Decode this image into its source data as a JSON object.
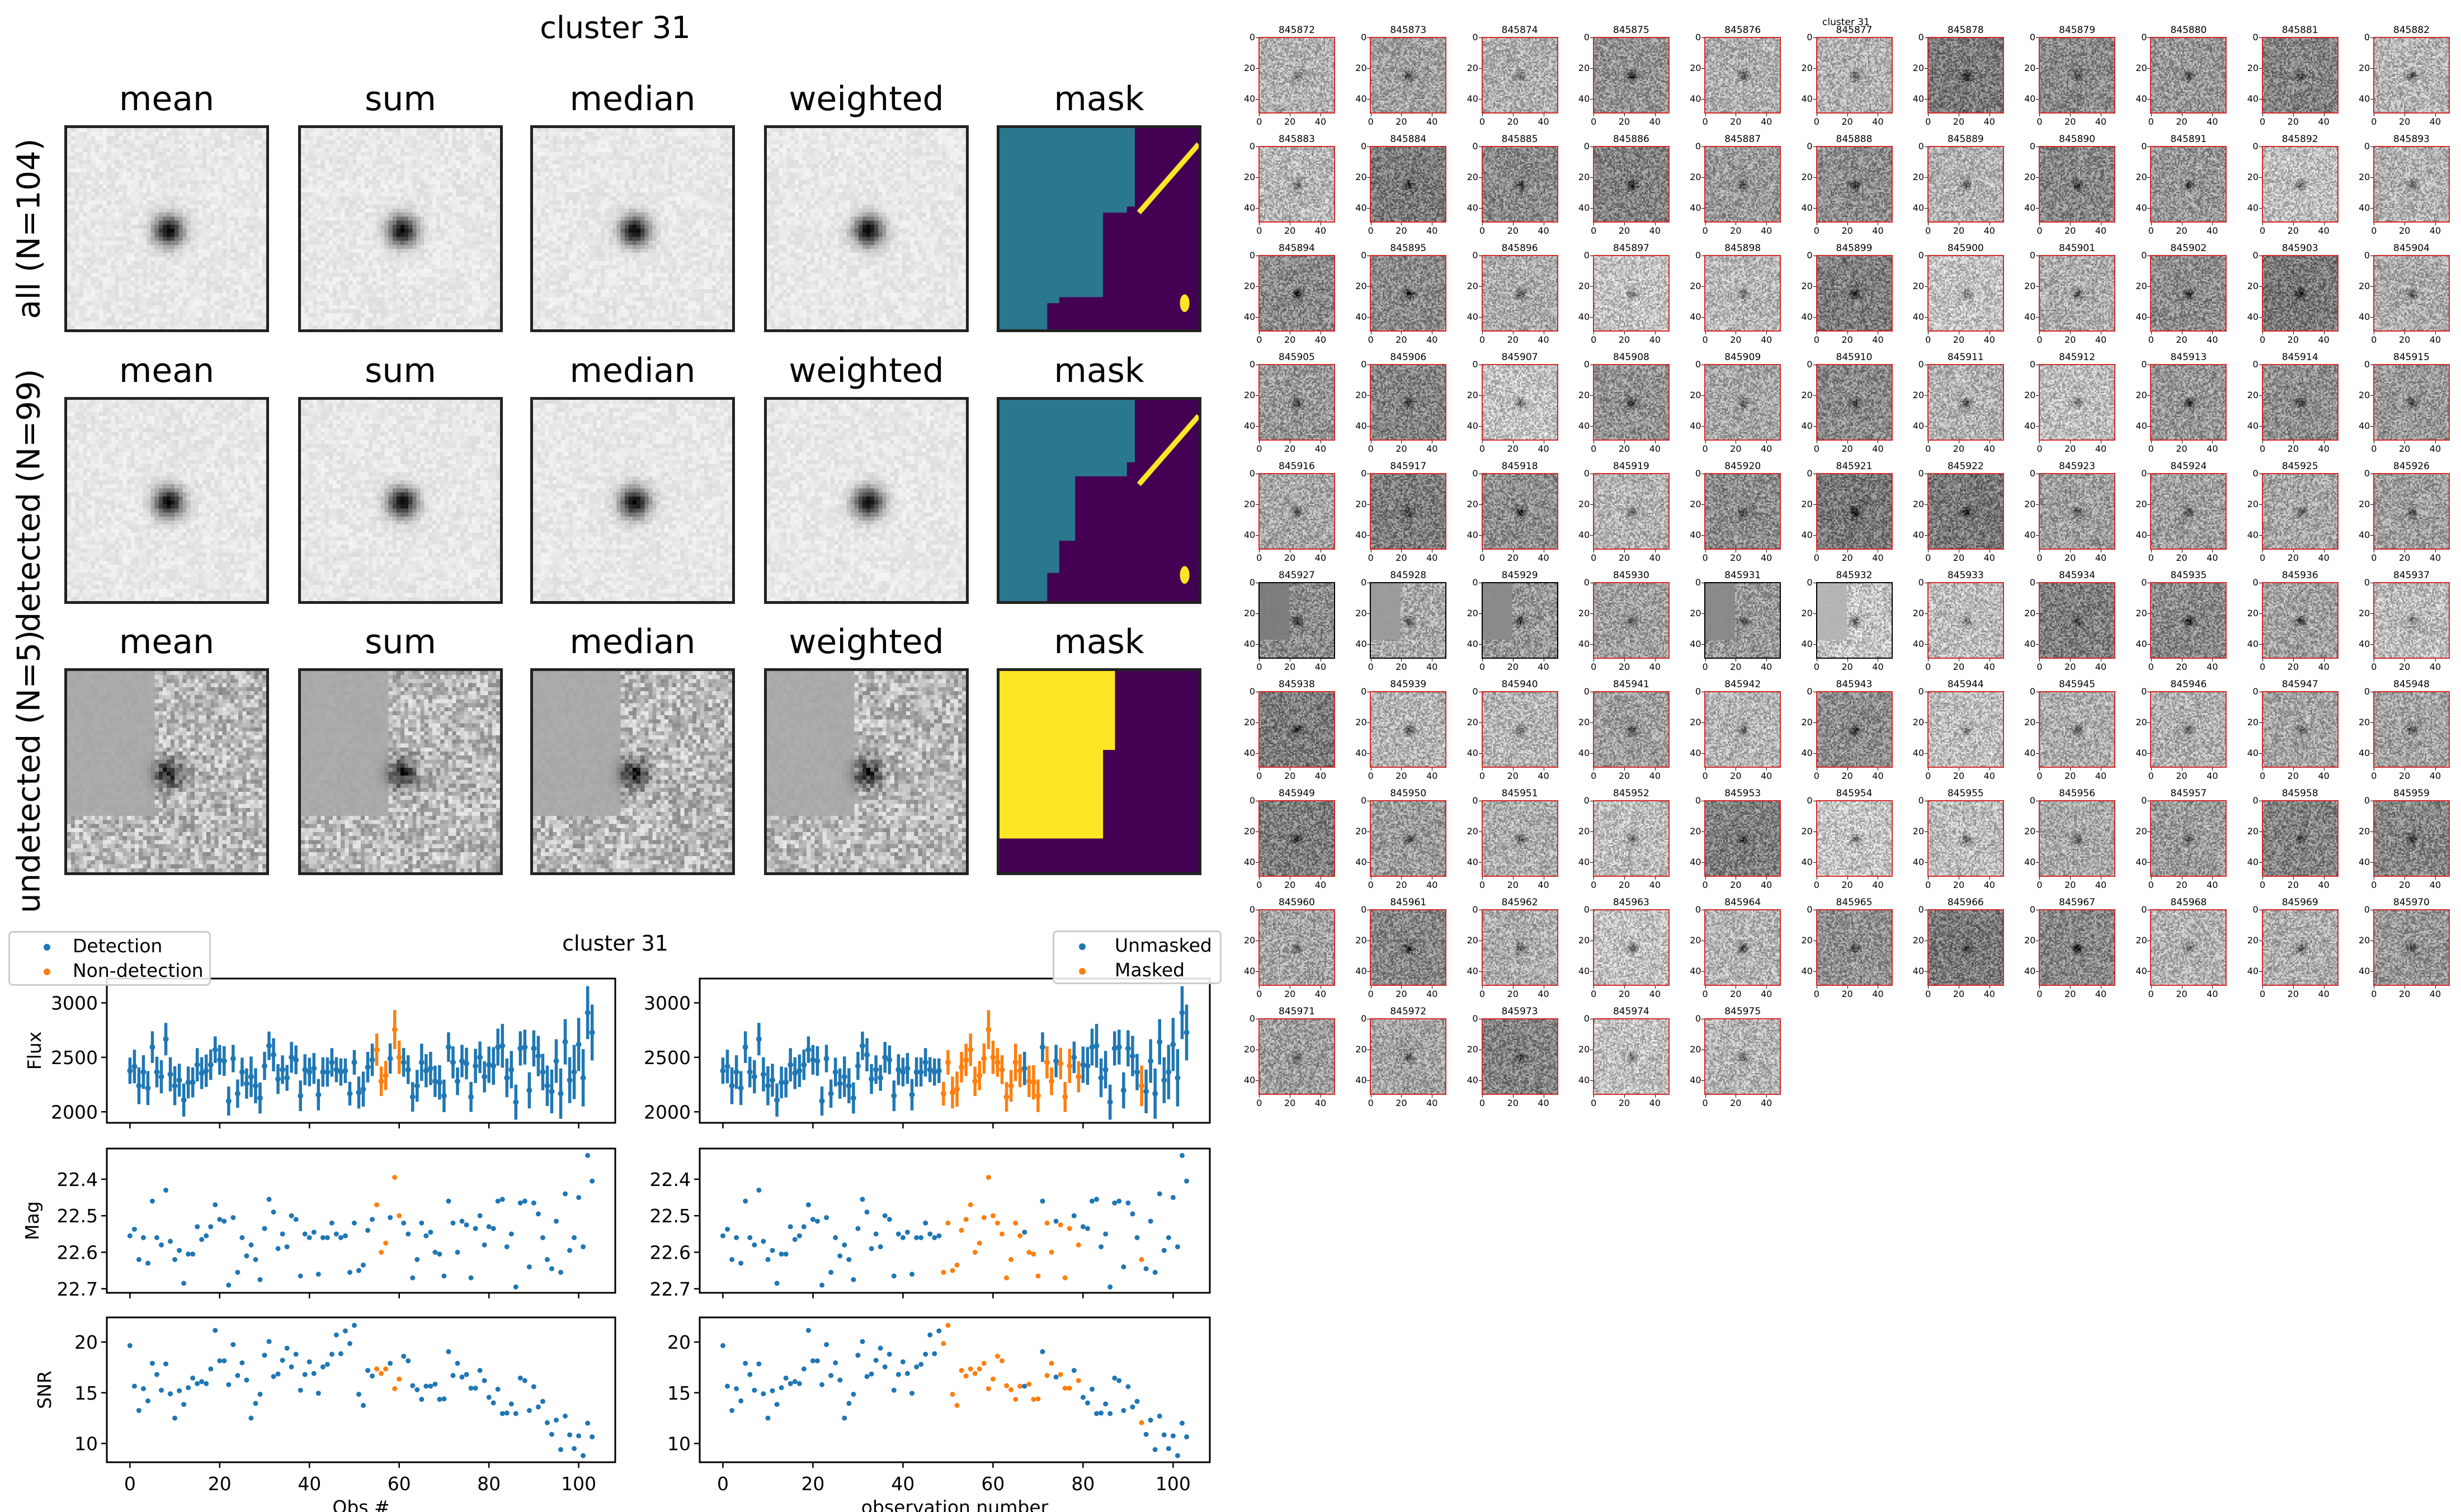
{
  "figure_title": "cluster 31",
  "stacks": {
    "columns": [
      "mean",
      "sum",
      "median",
      "weighted",
      "mask"
    ],
    "rows": [
      {
        "label": "all (N=104)"
      },
      {
        "label": "detected (N=99)"
      },
      {
        "label": "undetected (N=5)"
      }
    ],
    "mask_colors": {
      "low": "#440154",
      "mid": "#2a788e",
      "high": "#fde725"
    }
  },
  "thumbnails": {
    "supertitle": "cluster 31",
    "tick_labels": [
      "0",
      "20",
      "40"
    ],
    "border_colors": {
      "detected": "#d62728",
      "undetected": "#000000"
    },
    "ids": [
      "845872",
      "845873",
      "845874",
      "845875",
      "845876",
      "845877",
      "845878",
      "845879",
      "845880",
      "845881",
      "845882",
      "845883",
      "845884",
      "845885",
      "845886",
      "845887",
      "845888",
      "845889",
      "845890",
      "845891",
      "845892",
      "845893",
      "845894",
      "845895",
      "845896",
      "845897",
      "845898",
      "845899",
      "845900",
      "845901",
      "845902",
      "845903",
      "845904",
      "845905",
      "845906",
      "845907",
      "845908",
      "845909",
      "845910",
      "845911",
      "845912",
      "845913",
      "845914",
      "845915",
      "845916",
      "845917",
      "845918",
      "845919",
      "845920",
      "845921",
      "845922",
      "845923",
      "845924",
      "845925",
      "845926",
      "845927",
      "845928",
      "845929",
      "845930",
      "845931",
      "845932",
      "845933",
      "845934",
      "845935",
      "845936",
      "845937",
      "845938",
      "845939",
      "845940",
      "845941",
      "845942",
      "845943",
      "845944",
      "845945",
      "845946",
      "845947",
      "845948",
      "845949",
      "845950",
      "845951",
      "845952",
      "845953",
      "845954",
      "845955",
      "845956",
      "845957",
      "845958",
      "845959",
      "845960",
      "845961",
      "845962",
      "845963",
      "845964",
      "845965",
      "845966",
      "845967",
      "845968",
      "845969",
      "845970",
      "845971",
      "845972",
      "845973",
      "845974",
      "845975"
    ],
    "undetected_ids": [
      "845927",
      "845928",
      "845929",
      "845931",
      "845932"
    ]
  },
  "chart_data": {
    "type": "scatter",
    "title": "cluster 31",
    "colors": {
      "blue": "#1f77b4",
      "orange": "#ff7f0e"
    },
    "xlim": [
      -5.15,
      108.15
    ],
    "xticks": [
      0,
      20,
      40,
      60,
      80,
      100
    ],
    "rows": [
      {
        "ylabel": "Flux",
        "ylim": [
          1899,
          3223
        ],
        "yticks": [
          2000,
          2500,
          3000
        ],
        "inverted": false
      },
      {
        "ylabel": "Mag",
        "ylim": [
          22.711,
          22.316
        ],
        "yticks": [
          22.4,
          22.5,
          22.6,
          22.7
        ],
        "inverted": true
      },
      {
        "ylabel": "SNR",
        "ylim": [
          8.15,
          22.43
        ],
        "yticks": [
          10,
          15,
          20
        ],
        "inverted": false
      }
    ],
    "x": [
      0,
      1,
      2,
      3,
      4,
      5,
      6,
      7,
      8,
      9,
      10,
      11,
      12,
      13,
      14,
      15,
      16,
      17,
      18,
      19,
      20,
      21,
      22,
      23,
      24,
      25,
      26,
      27,
      28,
      29,
      30,
      31,
      32,
      33,
      34,
      35,
      36,
      37,
      38,
      39,
      40,
      41,
      42,
      43,
      44,
      45,
      46,
      47,
      48,
      49,
      50,
      51,
      52,
      53,
      54,
      55,
      56,
      57,
      58,
      59,
      60,
      61,
      62,
      63,
      64,
      65,
      66,
      67,
      68,
      69,
      70,
      71,
      72,
      73,
      74,
      75,
      76,
      77,
      78,
      79,
      80,
      81,
      82,
      83,
      84,
      85,
      86,
      87,
      88,
      89,
      90,
      91,
      92,
      93,
      94,
      95,
      96,
      97,
      98,
      99,
      100,
      101,
      102,
      103
    ],
    "flux": [
      2377,
      2416,
      2239,
      2365,
      2218,
      2594,
      2365,
      2322,
      2667,
      2344,
      2239,
      2290,
      2108,
      2270,
      2270,
      2432,
      2355,
      2377,
      2432,
      2570,
      2477,
      2466,
      2099,
      2489,
      2167,
      2365,
      2259,
      2322,
      2239,
      2127,
      2421,
      2606,
      2523,
      2301,
      2387,
      2312,
      2500,
      2477,
      2147,
      2387,
      2365,
      2398,
      2157,
      2365,
      2365,
      2454,
      2387,
      2365,
      2377,
      2167,
      2454,
      2177,
      2208,
      2410,
      2477,
      2570,
      2280,
      2333,
      2489,
      2754,
      2500,
      2454,
      2387,
      2137,
      2239,
      2454,
      2377,
      2398,
      2280,
      2270,
      2147,
      2594,
      2454,
      2280,
      2466,
      2443,
      2137,
      2421,
      2500,
      2322,
      2432,
      2421,
      2594,
      2606,
      2312,
      2387,
      2089,
      2582,
      2594,
      2197,
      2582,
      2512,
      2365,
      2239,
      2187,
      2466,
      2167,
      2642,
      2290,
      2365,
      2618,
      2312,
      2910,
      2728
    ],
    "flux_err": [
      121,
      154,
      169,
      154,
      156,
      145,
      141,
      152,
      149,
      157,
      179,
      151,
      152,
      146,
      138,
      153,
      146,
      149,
      140,
      122,
      136,
      136,
      133,
      126,
      130,
      132,
      139,
      186,
      161,
      143,
      129,
      130,
      152,
      137,
      131,
      119,
      142,
      132,
      141,
      142,
      131,
      142,
      144,
      135,
      133,
      131,
      115,
      125,
      113,
      109,
      113,
      147,
      161,
      140,
      149,
      148,
      135,
      134,
      139,
      179,
      153,
      132,
      132,
      136,
      146,
      171,
      152,
      153,
      144,
      158,
      149,
      136,
      147,
      127,
      149,
      145,
      138,
      157,
      145,
      143,
      167,
      173,
      169,
      201,
      178,
      172,
      161,
      157,
      160,
      166,
      166,
      185,
      167,
      186,
      201,
      200,
      231,
      208,
      211,
      249,
      244,
      263,
      243,
      256
    ],
    "mag": [
      22.555,
      22.537,
      22.62,
      22.56,
      22.63,
      22.46,
      22.56,
      22.58,
      22.43,
      22.57,
      22.62,
      22.595,
      22.685,
      22.605,
      22.605,
      22.53,
      22.565,
      22.555,
      22.53,
      22.47,
      22.51,
      22.515,
      22.69,
      22.505,
      22.655,
      22.56,
      22.61,
      22.58,
      22.62,
      22.675,
      22.535,
      22.455,
      22.49,
      22.59,
      22.55,
      22.585,
      22.5,
      22.51,
      22.665,
      22.55,
      22.56,
      22.545,
      22.66,
      22.56,
      22.56,
      22.52,
      22.55,
      22.56,
      22.555,
      22.655,
      22.52,
      22.65,
      22.635,
      22.54,
      22.51,
      22.47,
      22.6,
      22.575,
      22.505,
      22.395,
      22.5,
      22.52,
      22.55,
      22.67,
      22.62,
      22.52,
      22.555,
      22.545,
      22.6,
      22.605,
      22.665,
      22.46,
      22.52,
      22.6,
      22.515,
      22.525,
      22.67,
      22.535,
      22.5,
      22.58,
      22.53,
      22.535,
      22.46,
      22.455,
      22.585,
      22.55,
      22.695,
      22.465,
      22.46,
      22.64,
      22.465,
      22.495,
      22.56,
      22.62,
      22.645,
      22.515,
      22.655,
      22.44,
      22.595,
      22.56,
      22.45,
      22.585,
      22.335,
      22.405
    ],
    "snr": [
      19.65,
      15.65,
      13.25,
      15.4,
      14.2,
      17.9,
      16.8,
      15.25,
      17.85,
      14.9,
      12.5,
      15.2,
      13.85,
      15.5,
      16.45,
      15.9,
      16.1,
      15.9,
      17.35,
      21.15,
      18.15,
      18.15,
      15.8,
      19.75,
      16.7,
      17.95,
      16.25,
      12.5,
      13.95,
      14.85,
      18.7,
      20.05,
      16.6,
      16.85,
      18.2,
      19.4,
      17.55,
      18.8,
      15.25,
      16.8,
      18.05,
      16.9,
      14.95,
      17.55,
      17.8,
      18.8,
      20.7,
      18.85,
      21.1,
      19.85,
      21.65,
      14.85,
      13.75,
      17.2,
      16.65,
      17.35,
      16.9,
      17.35,
      17.9,
      15.4,
      16.35,
      18.6,
      18.15,
      15.7,
      15.3,
      14.35,
      15.65,
      15.65,
      15.85,
      14.35,
      14.4,
      19.05,
      16.7,
      17.9,
      16.55,
      16.8,
      15.45,
      15.45,
      17.2,
      16.2,
      14.55,
      14.0,
      15.35,
      12.95,
      13.0,
      13.9,
      12.95,
      16.45,
      16.2,
      13.25,
      15.6,
      13.6,
      14.15,
      12.05,
      10.9,
      12.3,
      9.4,
      12.7,
      10.85,
      9.5,
      10.75,
      8.8,
      12.0,
      10.65
    ],
    "panels": [
      {
        "xlabel": "Obs #",
        "legend": [
          "Detection",
          "Non-detection"
        ],
        "legend_loc": "upper left",
        "show_ylabels": true,
        "orange_indices": [
          55,
          56,
          57,
          59,
          60
        ]
      },
      {
        "xlabel": "observation number",
        "legend": [
          "Unmasked",
          "Masked"
        ],
        "legend_loc": "upper right",
        "show_ylabels": false,
        "orange_indices": [
          49,
          50,
          51,
          52,
          53,
          54,
          55,
          56,
          57,
          58,
          59,
          60,
          61,
          62,
          63,
          64,
          65,
          66,
          68,
          69,
          70,
          72,
          73,
          75,
          76,
          77,
          79,
          93
        ]
      }
    ]
  }
}
